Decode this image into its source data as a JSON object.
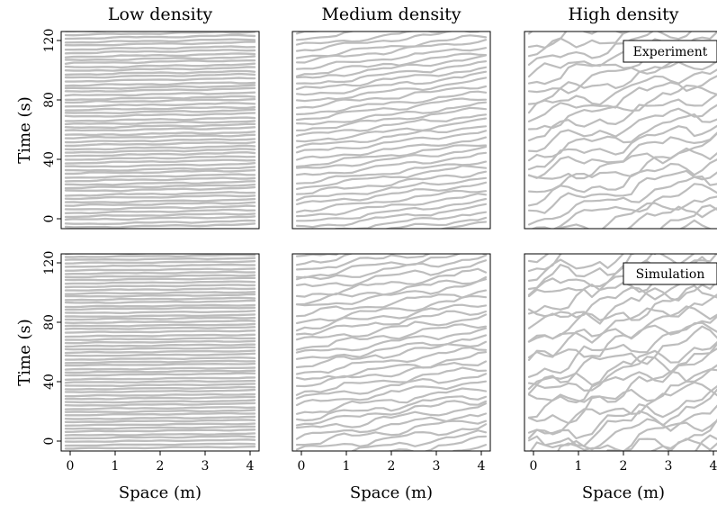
{
  "chart_data": {
    "type": "line",
    "description_kind": "trajectory small multiples",
    "columns": [
      {
        "title": "Low density"
      },
      {
        "title": "Medium density"
      },
      {
        "title": "High density"
      }
    ],
    "rows": [
      {
        "ylabel": "Time (s)",
        "annotation": "Experiment"
      },
      {
        "ylabel": "Time (s)",
        "annotation": "Simulation"
      }
    ],
    "xlabel": "Space (m)",
    "xlim": [
      0,
      4
    ],
    "ylim": [
      0,
      120
    ],
    "xticks": [
      "0",
      "1",
      "2",
      "3",
      "4"
    ],
    "yticks": [
      "0",
      "40",
      "80",
      "120"
    ],
    "panels": [
      {
        "row": 0,
        "col": 0,
        "count": 56,
        "slope": 2.0,
        "wiggle": 0.3,
        "seed": 11
      },
      {
        "row": 0,
        "col": 1,
        "count": 38,
        "slope": 14.0,
        "wiggle": 1.0,
        "seed": 23
      },
      {
        "row": 0,
        "col": 2,
        "count": 26,
        "slope": 27.0,
        "wiggle": 3.5,
        "seed": 37
      },
      {
        "row": 1,
        "col": 0,
        "count": 60,
        "slope": 1.2,
        "wiggle": 0.2,
        "seed": 41
      },
      {
        "row": 1,
        "col": 1,
        "count": 34,
        "slope": 16.0,
        "wiggle": 1.6,
        "seed": 53
      },
      {
        "row": 1,
        "col": 2,
        "count": 28,
        "slope": 30.0,
        "wiggle": 4.5,
        "seed": 67
      }
    ],
    "line_color": "#bdbdbd",
    "grid": false,
    "legend": "none"
  }
}
